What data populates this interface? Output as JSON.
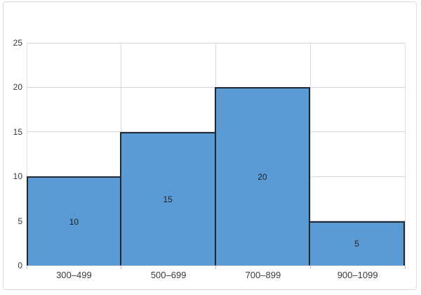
{
  "chart_data": {
    "type": "bar",
    "subtype": "histogram",
    "title": "",
    "xlabel": "",
    "ylabel": "",
    "categories": [
      "300–499",
      "500–699",
      "700–899",
      "900–1099"
    ],
    "values": [
      10,
      15,
      20,
      5
    ],
    "data_labels": [
      "10",
      "15",
      "20",
      "5"
    ],
    "show_data_labels": true,
    "data_label_position": "inside-center",
    "ylim": [
      0,
      25
    ],
    "yticks": [
      0,
      5,
      10,
      15,
      20,
      25
    ],
    "grid": true,
    "vertical_gridlines": true,
    "legend": "none",
    "bar_gap": 0
  },
  "style": {
    "bar_fill": "#5b9bd5",
    "bar_border": "#1f2733",
    "gridline_color": "#d9d9d9",
    "tick_color": "#bfbfbf",
    "axis_label_color": "#3a3a3a",
    "data_label_color": "#1f1f1f",
    "chart_border_color": "#d9d9d9",
    "background": "#ffffff"
  }
}
